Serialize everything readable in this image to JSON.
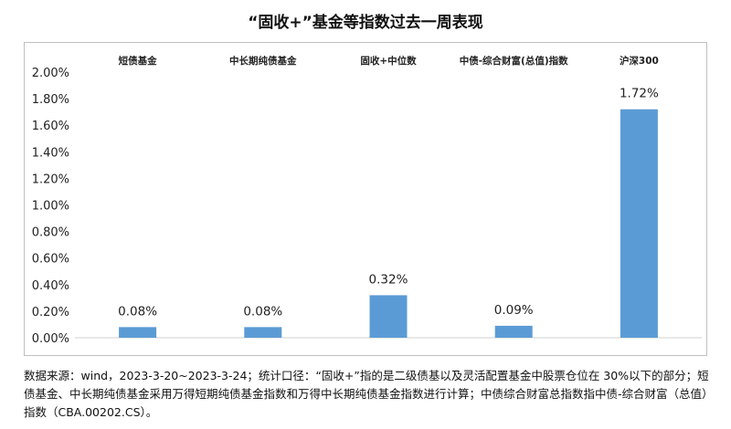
{
  "chart_data": {
    "type": "bar",
    "title": "“固收+”基金等指数过去一周表现",
    "categories": [
      "短债基金",
      "中长期纯债基金",
      "固收+中位数",
      "中债-综合财富(总值)指数",
      "沪深300"
    ],
    "values": [
      0.08,
      0.08,
      0.32,
      0.09,
      1.72
    ],
    "data_labels": [
      "0.08%",
      "0.08%",
      "0.32%",
      "0.09%",
      "1.72%"
    ],
    "ylim": [
      0,
      2.0
    ],
    "yticks": [
      0,
      0.2,
      0.4,
      0.6,
      0.8,
      1.0,
      1.2,
      1.4,
      1.6,
      1.8,
      2.0
    ],
    "ytick_labels": [
      "0.00%",
      "0.20%",
      "0.40%",
      "0.60%",
      "0.80%",
      "1.00%",
      "1.20%",
      "1.40%",
      "1.60%",
      "1.80%",
      "2.00%"
    ],
    "xlabel": "",
    "ylabel": "",
    "grid": false,
    "category_label_position": "top",
    "bar_color": "#5b9bd5"
  },
  "footnote": "数据来源：wind，2023-3-20~2023-3-24；统计口径：“固收+”指的是二级债基以及灵活配置基金中股票仓位在 30%以下的部分；短债基金、中长期纯债基金采用万得短期纯债基金指数和万得中长期纯债基金指数进行计算；中债综合财富总指数指中债-综合财富（总值）指数（CBA.00202.CS）。"
}
